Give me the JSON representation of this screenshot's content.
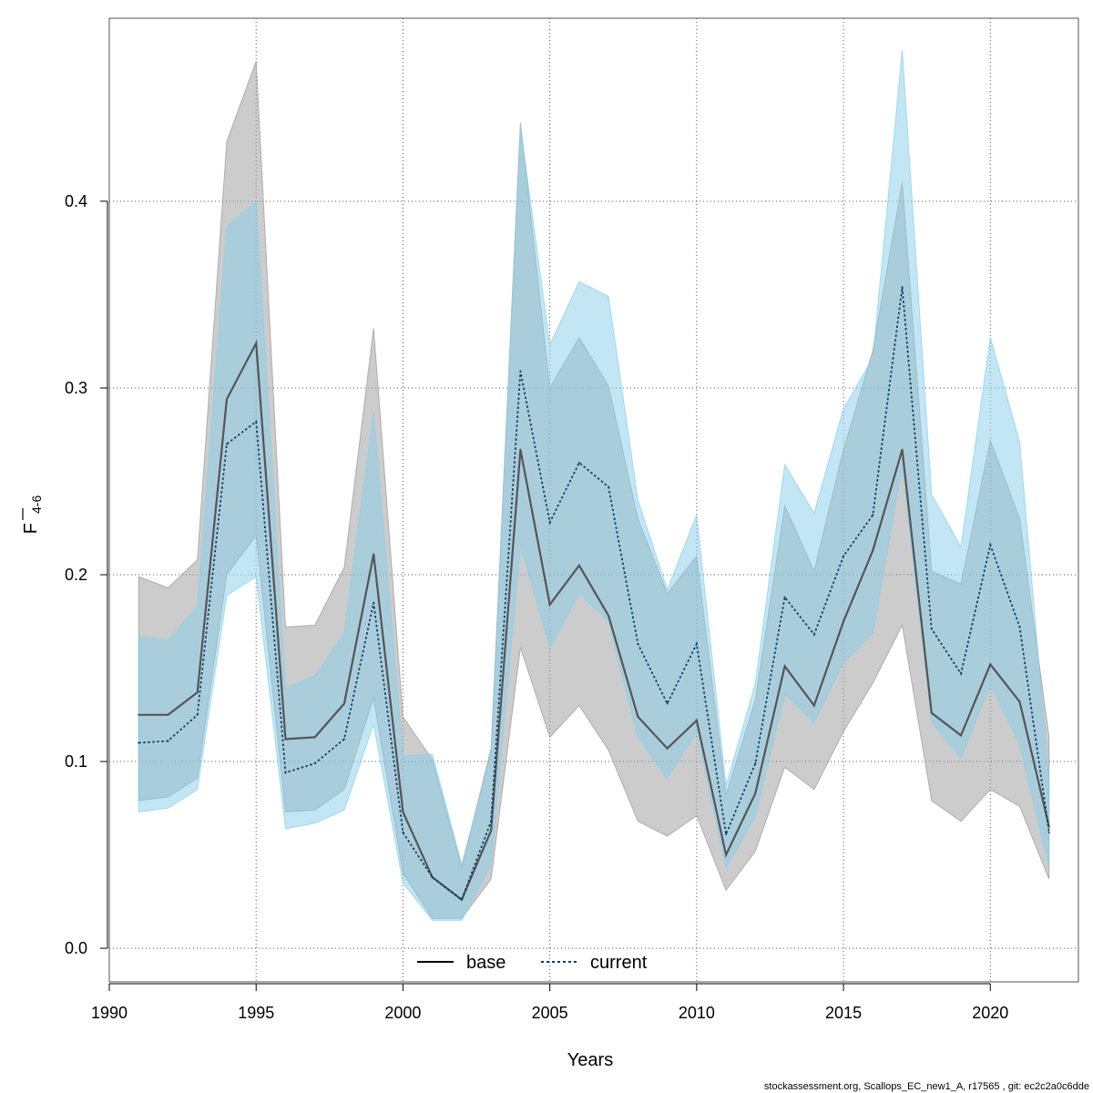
{
  "chart_data": {
    "type": "area",
    "xlabel": "Years",
    "ylabel_main": "F",
    "ylabel_sub": "4-6",
    "xlim": [
      1990,
      2023
    ],
    "ylim": [
      -0.018,
      0.498
    ],
    "xticks": [
      1990,
      1995,
      2000,
      2005,
      2010,
      2015,
      2020
    ],
    "yticks": [
      0.0,
      0.1,
      0.2,
      0.3,
      0.4
    ],
    "ytick_labels": [
      "0.0",
      "0.1",
      "0.2",
      "0.3",
      "0.4"
    ],
    "grid": true,
    "legend_position": "bottom-center",
    "x": [
      1991,
      1992,
      1993,
      1994,
      1995,
      1996,
      1997,
      1998,
      1999,
      2000,
      2001,
      2002,
      2003,
      2004,
      2005,
      2006,
      2007,
      2008,
      2009,
      2010,
      2011,
      2012,
      2013,
      2014,
      2015,
      2016,
      2017,
      2018,
      2019,
      2020,
      2021,
      2022
    ],
    "series": [
      {
        "name": "base",
        "line_style": "solid",
        "line_color": "#555555",
        "band_color": "#999999",
        "values": [
          0.125,
          0.125,
          0.137,
          0.294,
          0.324,
          0.112,
          0.113,
          0.131,
          0.211,
          0.073,
          0.038,
          0.026,
          0.063,
          0.267,
          0.184,
          0.205,
          0.178,
          0.124,
          0.107,
          0.122,
          0.05,
          0.083,
          0.151,
          0.13,
          0.175,
          0.213,
          0.267,
          0.126,
          0.114,
          0.152,
          0.132,
          0.065
        ],
        "lower": [
          0.079,
          0.081,
          0.091,
          0.2,
          0.221,
          0.073,
          0.074,
          0.085,
          0.134,
          0.04,
          0.016,
          0.016,
          0.037,
          0.161,
          0.113,
          0.13,
          0.106,
          0.068,
          0.06,
          0.071,
          0.031,
          0.052,
          0.097,
          0.085,
          0.116,
          0.142,
          0.173,
          0.079,
          0.068,
          0.085,
          0.076,
          0.037
        ],
        "upper": [
          0.199,
          0.193,
          0.208,
          0.432,
          0.475,
          0.172,
          0.173,
          0.204,
          0.332,
          0.124,
          0.101,
          0.043,
          0.107,
          0.442,
          0.3,
          0.327,
          0.301,
          0.23,
          0.19,
          0.21,
          0.082,
          0.133,
          0.237,
          0.202,
          0.267,
          0.32,
          0.41,
          0.202,
          0.195,
          0.272,
          0.23,
          0.113
        ]
      },
      {
        "name": "current",
        "line_style": "dotted",
        "line_color": "#0b3f66",
        "band_color": "#87ceeb",
        "values": [
          0.11,
          0.111,
          0.125,
          0.27,
          0.282,
          0.094,
          0.099,
          0.112,
          0.185,
          0.062,
          0.038,
          0.026,
          0.068,
          0.309,
          0.228,
          0.26,
          0.247,
          0.163,
          0.131,
          0.163,
          0.061,
          0.099,
          0.188,
          0.168,
          0.21,
          0.232,
          0.354,
          0.171,
          0.147,
          0.216,
          0.172,
          0.062
        ],
        "lower": [
          0.073,
          0.075,
          0.085,
          0.189,
          0.199,
          0.064,
          0.067,
          0.074,
          0.12,
          0.035,
          0.015,
          0.015,
          0.045,
          0.216,
          0.161,
          0.19,
          0.175,
          0.113,
          0.091,
          0.116,
          0.043,
          0.071,
          0.136,
          0.121,
          0.153,
          0.169,
          0.258,
          0.121,
          0.102,
          0.141,
          0.109,
          0.043
        ],
        "upper": [
          0.167,
          0.165,
          0.183,
          0.386,
          0.4,
          0.139,
          0.146,
          0.169,
          0.287,
          0.103,
          0.104,
          0.045,
          0.104,
          0.44,
          0.323,
          0.357,
          0.349,
          0.24,
          0.192,
          0.232,
          0.087,
          0.142,
          0.259,
          0.233,
          0.289,
          0.316,
          0.481,
          0.243,
          0.215,
          0.327,
          0.271,
          0.09
        ]
      }
    ]
  },
  "footer_text": "stockassessment.org, Scallops_EC_new1_A, r17565 , git: ec2c2a0c6dde"
}
